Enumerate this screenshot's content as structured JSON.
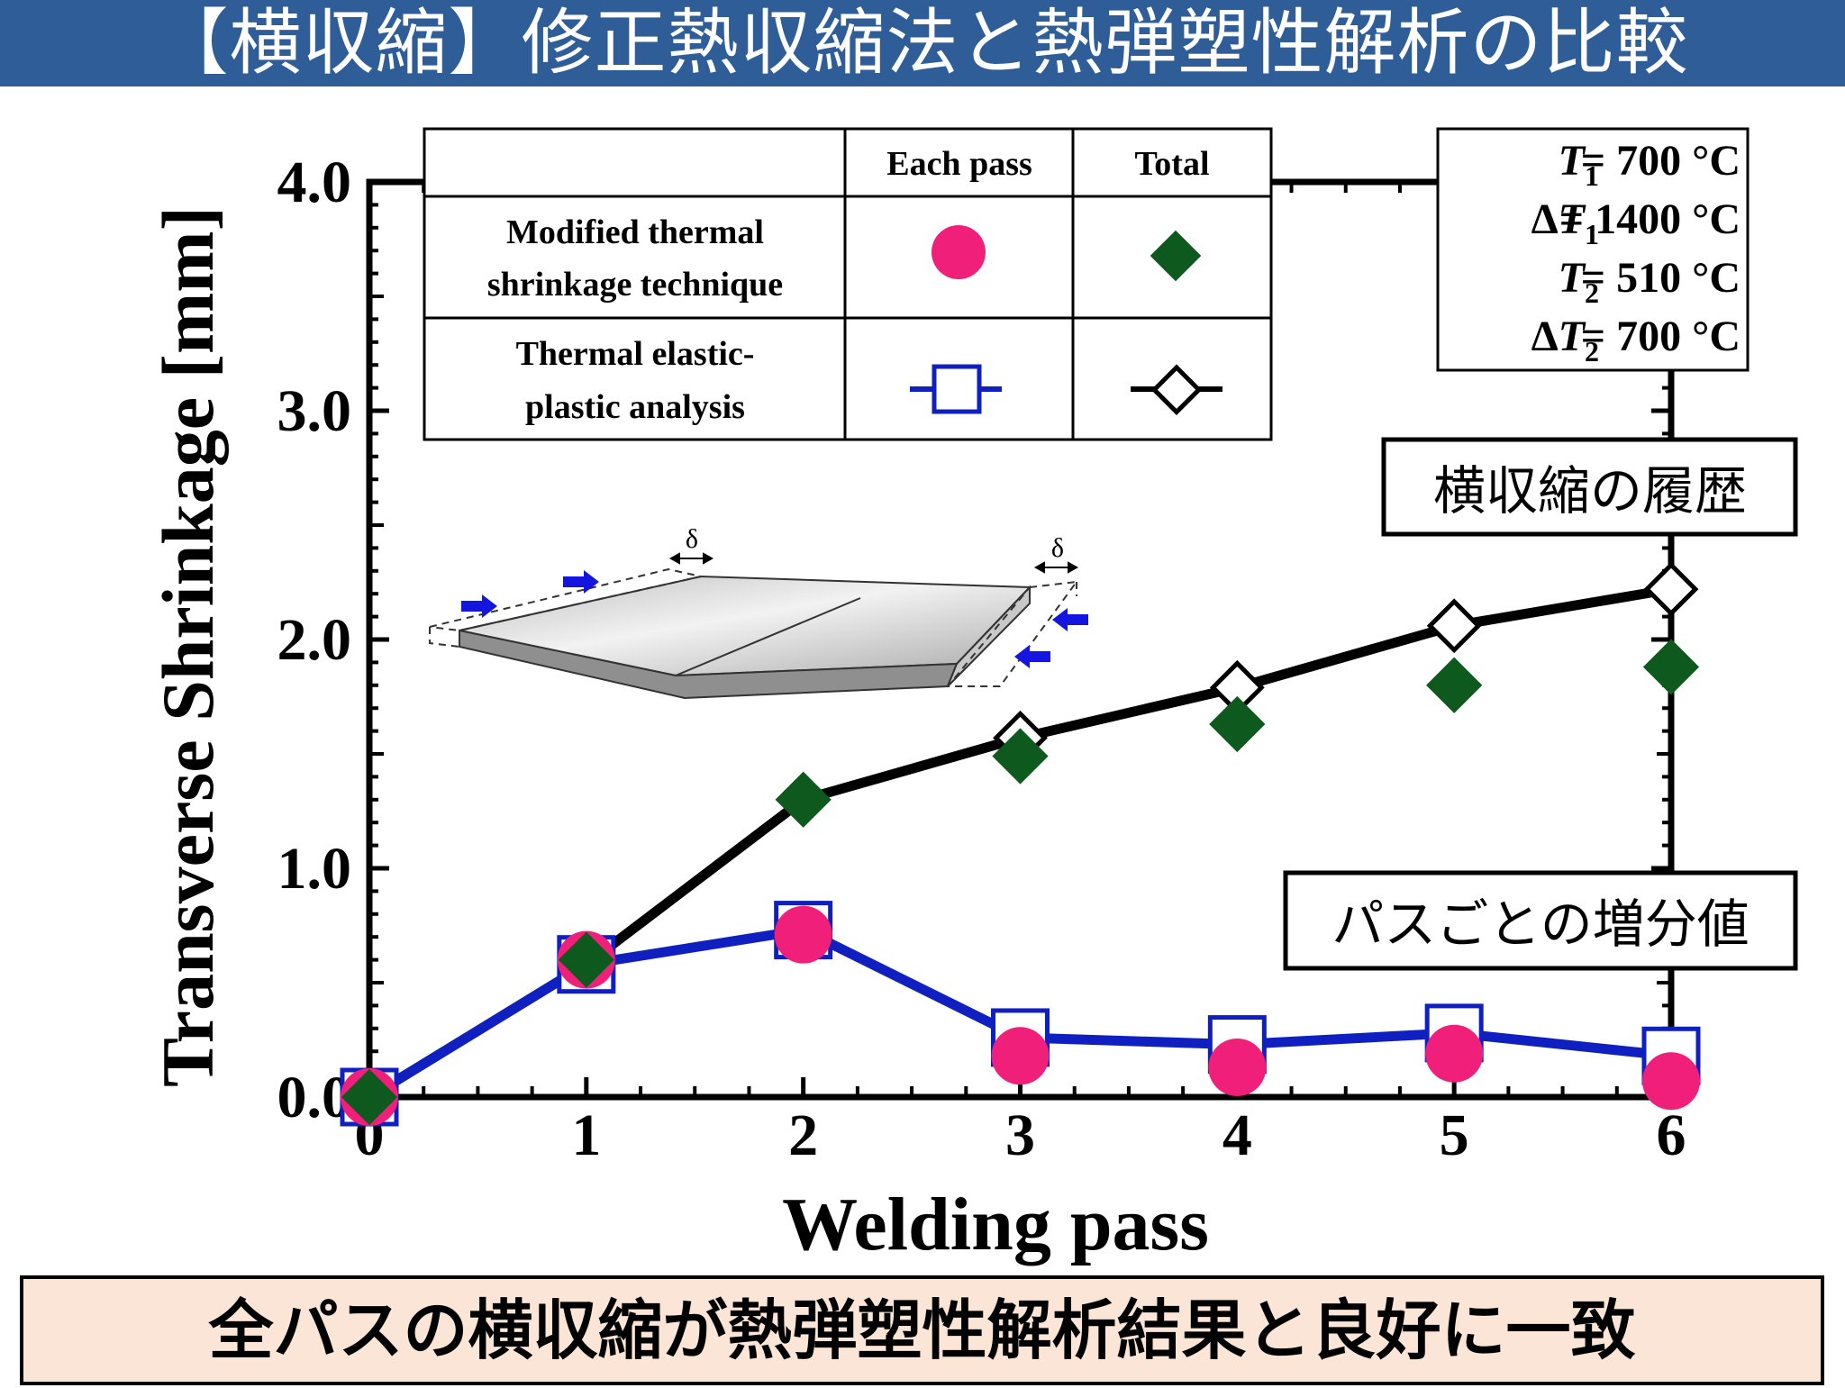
{
  "title": "【横収縮】修正熱収縮法と熱弾塑性解析の比較",
  "conclusion": "全パスの横収縮が熱弾塑性解析結果と良好に一致",
  "colors": {
    "title_bg": "#2f5d97",
    "each_pass_modified": "#f0207a",
    "each_pass_tepa": "#1020c0",
    "total_modified": "#0e5a1e",
    "total_tepa": "#000000",
    "conclusion_bg": "#fbe5d6"
  },
  "legend": {
    "col_each": "Each pass",
    "col_total": "Total",
    "row1": [
      "Modified thermal",
      "shrinkage technique"
    ],
    "row2": [
      "Thermal elastic-",
      "plastic analysis"
    ]
  },
  "params": [
    {
      "sym": "T",
      "sub": "1",
      "pre": "",
      "val": "= 700 °C"
    },
    {
      "sym": "T",
      "sub": "1",
      "pre": "Δ",
      "val": "= 1400 °C"
    },
    {
      "sym": "T",
      "sub": "2",
      "pre": "",
      "val": "= 510 °C"
    },
    {
      "sym": "T",
      "sub": "2",
      "pre": "Δ",
      "val": "= 700 °C"
    }
  ],
  "callouts": {
    "history": "横収縮の履歴",
    "increment": "パスごとの増分値"
  },
  "inset": {
    "delta_label": "δ",
    "icon": "welded-plate-shrinkage-diagram"
  },
  "chart_data": {
    "type": "line",
    "xlabel": "Welding pass",
    "ylabel": "Transverse Shrinkage [mm]",
    "xlim": [
      0,
      6
    ],
    "ylim": [
      0,
      4.0
    ],
    "x": [
      0,
      1,
      2,
      3,
      4,
      5,
      6
    ],
    "xticklabels": [
      "0",
      "1",
      "2",
      "3",
      "4",
      "5",
      "6"
    ],
    "yticks": [
      0,
      1,
      2,
      3,
      4
    ],
    "yticklabels": [
      "0.0",
      "1.0",
      "2.0",
      "3.0",
      "4.0"
    ],
    "grid": false,
    "series": [
      {
        "key": "tepa_total",
        "marker": "open-diamond",
        "line": true,
        "values": [
          0.0,
          0.58,
          1.3,
          1.57,
          1.79,
          2.06,
          2.22
        ]
      },
      {
        "key": "mod_total",
        "marker": "filled-diamond",
        "line": false,
        "values": [
          0.0,
          0.6,
          1.3,
          1.49,
          1.63,
          1.8,
          1.88
        ]
      },
      {
        "key": "tepa_each",
        "marker": "open-square",
        "line": true,
        "values": [
          0.0,
          0.58,
          0.73,
          0.26,
          0.23,
          0.28,
          0.18
        ]
      },
      {
        "key": "mod_each",
        "marker": "filled-circle",
        "line": false,
        "values": [
          0.0,
          0.6,
          0.71,
          0.18,
          0.13,
          0.19,
          0.07
        ]
      }
    ]
  }
}
